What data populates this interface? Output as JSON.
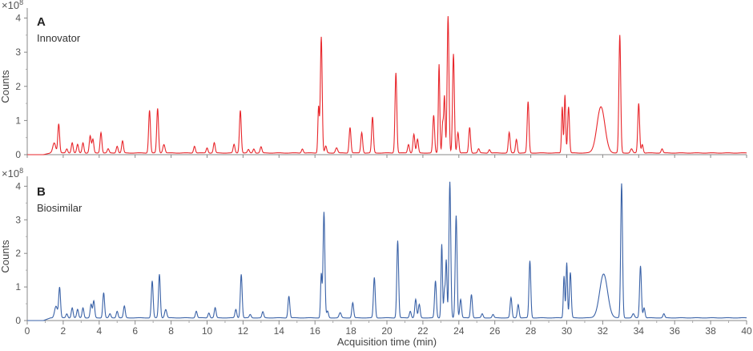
{
  "chart_data": [
    {
      "type": "line",
      "panel_letter": "A",
      "series": [
        {
          "name": "Innovator",
          "color": "#e8262b"
        }
      ],
      "ylabel": "Counts",
      "y_multiplier_label": "×10",
      "y_multiplier_exp": "8",
      "ylim": [
        0,
        4.2
      ],
      "yticks": [
        0,
        1,
        2,
        3,
        4
      ],
      "xlim": [
        0,
        40
      ],
      "baseline": 0.05,
      "peaks": [
        [
          1.5,
          0.3,
          0.08
        ],
        [
          1.75,
          0.85,
          0.05
        ],
        [
          2.2,
          0.12,
          0.05
        ],
        [
          2.5,
          0.3,
          0.05
        ],
        [
          2.8,
          0.25,
          0.05
        ],
        [
          3.1,
          0.3,
          0.05
        ],
        [
          3.5,
          0.5,
          0.05
        ],
        [
          3.65,
          0.4,
          0.05
        ],
        [
          4.1,
          0.6,
          0.05
        ],
        [
          4.5,
          0.12,
          0.05
        ],
        [
          5.0,
          0.2,
          0.05
        ],
        [
          5.3,
          0.35,
          0.05
        ],
        [
          6.8,
          1.25,
          0.05
        ],
        [
          7.25,
          1.3,
          0.05
        ],
        [
          7.6,
          0.25,
          0.06
        ],
        [
          9.3,
          0.2,
          0.05
        ],
        [
          10.0,
          0.15,
          0.05
        ],
        [
          10.4,
          0.3,
          0.05
        ],
        [
          11.5,
          0.25,
          0.05
        ],
        [
          11.85,
          1.25,
          0.05
        ],
        [
          12.3,
          0.1,
          0.05
        ],
        [
          12.6,
          0.12,
          0.05
        ],
        [
          13.0,
          0.18,
          0.05
        ],
        [
          15.3,
          0.12,
          0.05
        ],
        [
          16.2,
          1.35,
          0.04
        ],
        [
          16.35,
          3.4,
          0.05
        ],
        [
          16.6,
          0.2,
          0.05
        ],
        [
          17.2,
          0.15,
          0.06
        ],
        [
          17.95,
          0.75,
          0.05
        ],
        [
          18.6,
          0.6,
          0.05
        ],
        [
          19.2,
          1.05,
          0.05
        ],
        [
          20.5,
          2.35,
          0.05
        ],
        [
          21.2,
          0.25,
          0.05
        ],
        [
          21.5,
          0.55,
          0.05
        ],
        [
          21.7,
          0.4,
          0.05
        ],
        [
          22.6,
          1.1,
          0.05
        ],
        [
          22.9,
          2.6,
          0.04
        ],
        [
          23.1,
          0.85,
          0.04
        ],
        [
          23.2,
          1.65,
          0.04
        ],
        [
          23.4,
          4.0,
          0.05
        ],
        [
          23.7,
          2.9,
          0.05
        ],
        [
          23.95,
          0.6,
          0.05
        ],
        [
          24.6,
          0.75,
          0.05
        ],
        [
          25.1,
          0.12,
          0.05
        ],
        [
          25.7,
          0.1,
          0.05
        ],
        [
          26.8,
          0.6,
          0.05
        ],
        [
          27.2,
          0.4,
          0.05
        ],
        [
          27.85,
          1.5,
          0.05
        ],
        [
          29.75,
          1.35,
          0.04
        ],
        [
          29.9,
          1.7,
          0.04
        ],
        [
          30.1,
          1.35,
          0.05
        ],
        [
          31.9,
          1.35,
          0.22
        ],
        [
          32.95,
          3.45,
          0.05
        ],
        [
          33.6,
          0.12,
          0.06
        ],
        [
          34.0,
          1.45,
          0.05
        ],
        [
          34.2,
          0.25,
          0.05
        ],
        [
          35.3,
          0.12,
          0.05
        ]
      ]
    },
    {
      "type": "line",
      "panel_letter": "B",
      "series": [
        {
          "name": "Biosimilar",
          "color": "#3a62a7"
        }
      ],
      "ylabel": "Counts",
      "y_multiplier_label": "×10",
      "y_multiplier_exp": "8",
      "ylim": [
        0,
        4.2
      ],
      "yticks": [
        0,
        1,
        2,
        3,
        4
      ],
      "xlim": [
        0,
        40
      ],
      "baseline": 0.08,
      "peaks": [
        [
          1.6,
          0.35,
          0.08
        ],
        [
          1.8,
          0.9,
          0.05
        ],
        [
          2.2,
          0.12,
          0.05
        ],
        [
          2.5,
          0.3,
          0.05
        ],
        [
          2.8,
          0.25,
          0.05
        ],
        [
          3.1,
          0.3,
          0.05
        ],
        [
          3.55,
          0.4,
          0.05
        ],
        [
          3.7,
          0.5,
          0.05
        ],
        [
          4.25,
          0.75,
          0.05
        ],
        [
          4.6,
          0.12,
          0.05
        ],
        [
          5.0,
          0.2,
          0.05
        ],
        [
          5.4,
          0.35,
          0.05
        ],
        [
          6.95,
          1.1,
          0.05
        ],
        [
          7.35,
          1.3,
          0.05
        ],
        [
          7.7,
          0.25,
          0.06
        ],
        [
          9.4,
          0.2,
          0.05
        ],
        [
          10.1,
          0.15,
          0.05
        ],
        [
          10.45,
          0.3,
          0.05
        ],
        [
          11.6,
          0.25,
          0.05
        ],
        [
          11.9,
          1.3,
          0.05
        ],
        [
          12.4,
          0.1,
          0.05
        ],
        [
          13.1,
          0.18,
          0.05
        ],
        [
          14.55,
          0.65,
          0.05
        ],
        [
          16.35,
          1.3,
          0.04
        ],
        [
          16.5,
          3.15,
          0.05
        ],
        [
          16.7,
          0.2,
          0.05
        ],
        [
          17.4,
          0.15,
          0.06
        ],
        [
          18.1,
          0.45,
          0.05
        ],
        [
          19.3,
          1.2,
          0.05
        ],
        [
          20.6,
          2.3,
          0.05
        ],
        [
          21.3,
          0.2,
          0.05
        ],
        [
          21.6,
          0.55,
          0.05
        ],
        [
          21.8,
          0.4,
          0.05
        ],
        [
          22.7,
          1.1,
          0.05
        ],
        [
          23.05,
          2.2,
          0.04
        ],
        [
          23.2,
          0.8,
          0.04
        ],
        [
          23.3,
          1.7,
          0.04
        ],
        [
          23.5,
          4.05,
          0.05
        ],
        [
          23.85,
          3.05,
          0.05
        ],
        [
          24.1,
          0.55,
          0.05
        ],
        [
          24.7,
          0.7,
          0.05
        ],
        [
          25.3,
          0.12,
          0.05
        ],
        [
          25.9,
          0.1,
          0.05
        ],
        [
          26.9,
          0.6,
          0.05
        ],
        [
          27.3,
          0.4,
          0.05
        ],
        [
          27.95,
          1.7,
          0.05
        ],
        [
          29.85,
          1.25,
          0.04
        ],
        [
          30.0,
          1.65,
          0.04
        ],
        [
          30.2,
          1.35,
          0.05
        ],
        [
          32.05,
          1.3,
          0.22
        ],
        [
          33.05,
          4.0,
          0.05
        ],
        [
          33.7,
          0.12,
          0.06
        ],
        [
          34.1,
          1.55,
          0.05
        ],
        [
          34.3,
          0.3,
          0.05
        ],
        [
          35.4,
          0.12,
          0.05
        ]
      ]
    }
  ],
  "x_axis": {
    "label": "Acquisition time (min)",
    "ticks": [
      0,
      2,
      4,
      6,
      8,
      10,
      12,
      14,
      16,
      18,
      20,
      22,
      24,
      26,
      28,
      30,
      32,
      34,
      36,
      38,
      40
    ]
  }
}
